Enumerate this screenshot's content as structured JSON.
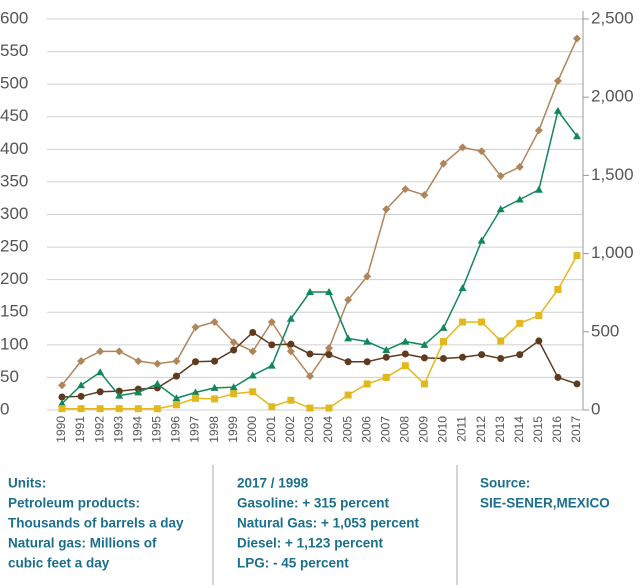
{
  "chart_data": {
    "type": "line",
    "x": [
      1990,
      1991,
      1992,
      1993,
      1994,
      1995,
      1996,
      1997,
      1998,
      1999,
      2000,
      2001,
      2002,
      2003,
      2004,
      2005,
      2006,
      2007,
      2008,
      2009,
      2010,
      2011,
      2012,
      2013,
      2014,
      2015,
      2016,
      2017
    ],
    "xlim": [
      1990,
      2017
    ],
    "series": [
      {
        "color": "#b0855a",
        "marker": "diamond",
        "values": [
          38,
          75,
          90,
          90,
          75,
          71,
          75,
          127,
          135,
          104,
          90,
          135,
          90,
          52,
          95,
          169,
          205,
          308,
          339,
          330,
          378,
          403,
          397,
          359,
          373,
          429,
          505,
          570
        ]
      },
      {
        "color": "#5e3a1e",
        "marker": "circle",
        "values": [
          20,
          21,
          28,
          29,
          32,
          34,
          52,
          74,
          75,
          92,
          119,
          100,
          101,
          86,
          85,
          74,
          74,
          81,
          86,
          80,
          79,
          81,
          85,
          79,
          85,
          106,
          50,
          40
        ]
      },
      {
        "color": "#12885a",
        "marker": "triangle",
        "values": [
          10,
          38,
          58,
          22,
          27,
          40,
          18,
          27,
          34,
          35,
          53,
          68,
          140,
          181,
          181,
          110,
          105,
          92,
          105,
          100,
          126,
          187,
          260,
          308,
          323,
          338,
          459,
          420
        ]
      },
      {
        "color": "#e3b81c",
        "marker": "square",
        "values": [
          2,
          2,
          2,
          2,
          2,
          2,
          8,
          18,
          17,
          25,
          28,
          5,
          15,
          3,
          3,
          23,
          40,
          50,
          68,
          40,
          105,
          135,
          135,
          106,
          133,
          145,
          185,
          237
        ]
      }
    ],
    "ylim": [
      0,
      600
    ],
    "yticks": [
      0,
      50,
      100,
      150,
      200,
      250,
      300,
      350,
      400,
      450,
      500,
      550,
      600
    ],
    "y2lim": [
      0,
      2500
    ],
    "y2ticks": [
      0,
      500,
      {
        "value": 1000,
        "label": "1,000"
      },
      {
        "value": 1500,
        "label": "1,500"
      },
      {
        "value": 2000,
        "label": "2,000"
      },
      {
        "value": 2500,
        "label": "2,500"
      }
    ],
    "grid": true
  },
  "footer": {
    "columns": [
      [
        "Units:",
        "Petroleum products:",
        "Thousands of barrels a day",
        "Natural gas: Millions of",
        "cubic feet a day"
      ],
      [
        "2017 / 1998",
        "Gasoline: + 315 percent",
        "Natural Gas: + 1,053 percent",
        "Diesel: + 1,123 percent",
        "LPG: - 45 percent"
      ],
      [
        "Source:",
        "SIE-SENER,MEXICO"
      ]
    ]
  }
}
